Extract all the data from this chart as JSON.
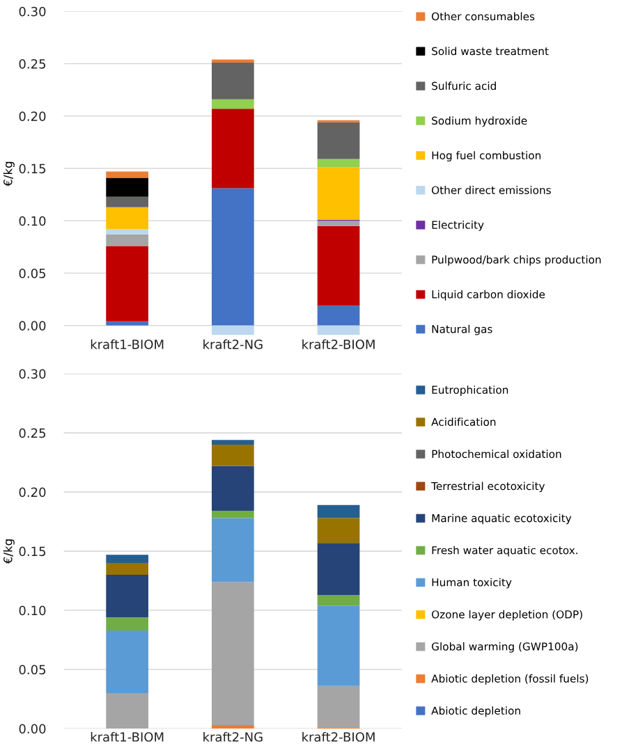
{
  "chart_data": [
    {
      "type": "bar",
      "stacked": true,
      "ylabel": "€/kg",
      "categories": [
        "kraft1-BIOM",
        "kraft2-NG",
        "kraft2-BIOM"
      ],
      "ylim": [
        -0.01,
        0.3
      ],
      "yticks": [
        {
          "value": 0,
          "label": "0.00"
        },
        {
          "value": 0.05,
          "label": "0.05"
        },
        {
          "value": 0.1,
          "label": "0.10"
        },
        {
          "value": 0.15,
          "label": "0.15"
        },
        {
          "value": 0.2,
          "label": "0.20"
        },
        {
          "value": 0.25,
          "label": "0.25"
        },
        {
          "value": 0.3,
          "label": "0.30"
        }
      ],
      "grid": "y",
      "legend": "right",
      "series": [
        {
          "name": "Natural gas",
          "color": "#4472c4",
          "values": [
            0.004,
            0.131,
            0.019
          ]
        },
        {
          "name": "Liquid carbon dioxide",
          "color": "#c00000",
          "values": [
            0.072,
            0.076,
            0.076
          ]
        },
        {
          "name": "Pulpwood/bark chips production",
          "color": "#a5a5a5",
          "values": [
            0.011,
            0,
            0.005
          ]
        },
        {
          "name": "Electricity",
          "color": "#7030a0",
          "values": [
            0,
            0,
            0.001
          ]
        },
        {
          "name": "Other direct emissions",
          "color": "#bdd7ee",
          "values": [
            0.005,
            -0.009,
            -0.009
          ]
        },
        {
          "name": "Hog fuel combustion",
          "color": "#ffc000",
          "values": [
            0.021,
            0,
            0.05
          ]
        },
        {
          "name": "Sodium hydroxide",
          "color": "#92d050",
          "values": [
            0,
            0.009,
            0.008
          ]
        },
        {
          "name": "Sulfuric acid",
          "color": "#636363",
          "values": [
            0.01,
            0.035,
            0.035
          ]
        },
        {
          "name": "Solid waste treatment",
          "color": "#000000",
          "values": [
            0.018,
            0,
            0
          ]
        },
        {
          "name": "Other consumables",
          "color": "#ed7d31",
          "values": [
            0.006,
            0.003,
            0.002
          ]
        }
      ]
    },
    {
      "type": "bar",
      "stacked": true,
      "ylabel": "€/kg",
      "categories": [
        "kraft1-BIOM",
        "kraft2-NG",
        "kraft2-BIOM"
      ],
      "ylim": [
        0,
        0.3
      ],
      "yticks": [
        {
          "value": 0,
          "label": "0.00"
        },
        {
          "value": 0.05,
          "label": "0.05"
        },
        {
          "value": 0.1,
          "label": "0.10"
        },
        {
          "value": 0.15,
          "label": "0.15"
        },
        {
          "value": 0.2,
          "label": "0.20"
        },
        {
          "value": 0.25,
          "label": "0.25"
        },
        {
          "value": 0.3,
          "label": "0.30"
        }
      ],
      "grid": "y",
      "legend": "right",
      "series": [
        {
          "name": "Abiotic depletion",
          "color": "#4472c4",
          "values": [
            0,
            0,
            0
          ]
        },
        {
          "name": "Abiotic depletion (fossil fuels)",
          "color": "#ed7d31",
          "values": [
            0,
            0.003,
            0.001
          ]
        },
        {
          "name": "Global warming (GWP100a)",
          "color": "#a5a5a5",
          "values": [
            0.03,
            0.121,
            0.035
          ]
        },
        {
          "name": "Ozone layer depletion (ODP)",
          "color": "#ffc000",
          "values": [
            0,
            0,
            0
          ]
        },
        {
          "name": "Human toxicity",
          "color": "#5b9bd5",
          "values": [
            0.053,
            0.054,
            0.068
          ]
        },
        {
          "name": "Fresh water aquatic ecotox.",
          "color": "#70ad47",
          "values": [
            0.011,
            0.006,
            0.009
          ]
        },
        {
          "name": "Marine aquatic ecotoxicity",
          "color": "#264478",
          "values": [
            0.036,
            0.038,
            0.044
          ]
        },
        {
          "name": "Terrestrial ecotoxicity",
          "color": "#9e480e",
          "values": [
            0,
            0,
            0
          ]
        },
        {
          "name": "Photochemical oxidation",
          "color": "#636363",
          "values": [
            0,
            0,
            0
          ]
        },
        {
          "name": "Acidification",
          "color": "#997300",
          "values": [
            0.01,
            0.018,
            0.021
          ]
        },
        {
          "name": "Eutrophication",
          "color": "#255e91",
          "values": [
            0.007,
            0.004,
            0.011
          ]
        }
      ]
    }
  ]
}
